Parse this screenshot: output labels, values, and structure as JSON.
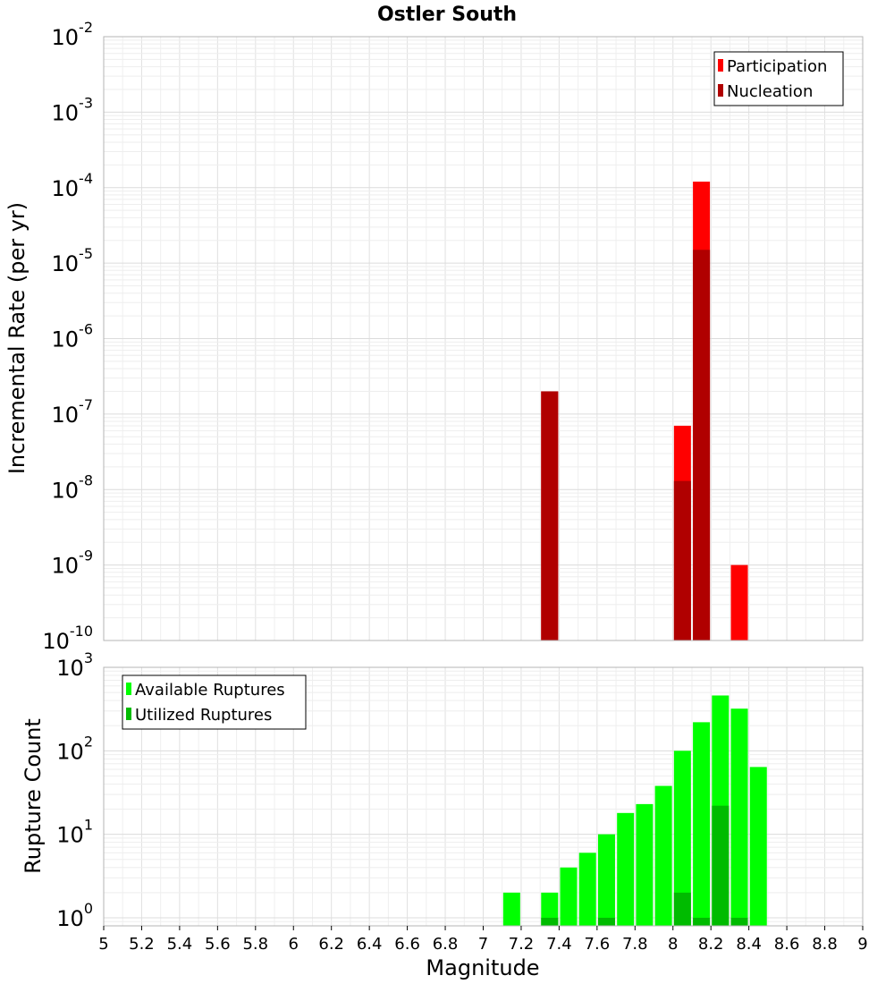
{
  "chart_data": [
    {
      "type": "bar",
      "title": "Ostler South",
      "xlabel": "",
      "ylabel": "Incremental Rate (per yr)",
      "y_scale": "log",
      "xlim": [
        5,
        9
      ],
      "ylim": [
        1e-10,
        0.01
      ],
      "y_ticks": [
        {
          "base": "10",
          "exp": "-2"
        },
        {
          "base": "10",
          "exp": "-3"
        },
        {
          "base": "10",
          "exp": "-4"
        },
        {
          "base": "10",
          "exp": "-5"
        },
        {
          "base": "10",
          "exp": "-6"
        },
        {
          "base": "10",
          "exp": "-7"
        },
        {
          "base": "10",
          "exp": "-8"
        },
        {
          "base": "10",
          "exp": "-9"
        },
        {
          "base": "10",
          "exp": "-10"
        }
      ],
      "grid": true,
      "legend_position": "top-right",
      "series": [
        {
          "name": "Participation",
          "color": "#ff0000",
          "x": [
            7.35,
            8.05,
            8.15,
            8.35
          ],
          "values": [
            2e-07,
            7e-08,
            0.00012,
            1e-09
          ]
        },
        {
          "name": "Nucleation",
          "color": "#b00000",
          "x": [
            7.35,
            8.05,
            8.15
          ],
          "values": [
            2e-07,
            1.3e-08,
            1.5e-05
          ]
        }
      ]
    },
    {
      "type": "bar",
      "title": "",
      "xlabel": "Magnitude",
      "ylabel": "Rupture Count",
      "y_scale": "log",
      "xlim": [
        5,
        9
      ],
      "ylim": [
        0.8,
        1000
      ],
      "x_ticks": [
        "5",
        "5.2",
        "5.4",
        "5.6",
        "5.8",
        "6",
        "6.2",
        "6.4",
        "6.6",
        "6.8",
        "7",
        "7.2",
        "7.4",
        "7.6",
        "7.8",
        "8",
        "8.2",
        "8.4",
        "8.6",
        "8.8",
        "9"
      ],
      "y_ticks": [
        {
          "base": "10",
          "exp": "3"
        },
        {
          "base": "10",
          "exp": "2"
        },
        {
          "base": "10",
          "exp": "1"
        },
        {
          "base": "10",
          "exp": "0"
        }
      ],
      "grid": true,
      "legend_position": "top-left",
      "series": [
        {
          "name": "Available Ruptures",
          "color": "#00ff00",
          "x": [
            7.15,
            7.35,
            7.45,
            7.55,
            7.65,
            7.75,
            7.85,
            7.95,
            8.05,
            8.15,
            8.25,
            8.35,
            8.45
          ],
          "values": [
            2,
            2,
            4,
            6,
            10,
            18,
            23,
            38,
            100,
            220,
            460,
            320,
            64
          ]
        },
        {
          "name": "Utilized Ruptures",
          "color": "#00bb00",
          "x": [
            7.35,
            7.65,
            8.05,
            8.15,
            8.25,
            8.35
          ],
          "values": [
            1,
            1,
            2,
            1,
            22,
            1
          ]
        }
      ]
    }
  ]
}
